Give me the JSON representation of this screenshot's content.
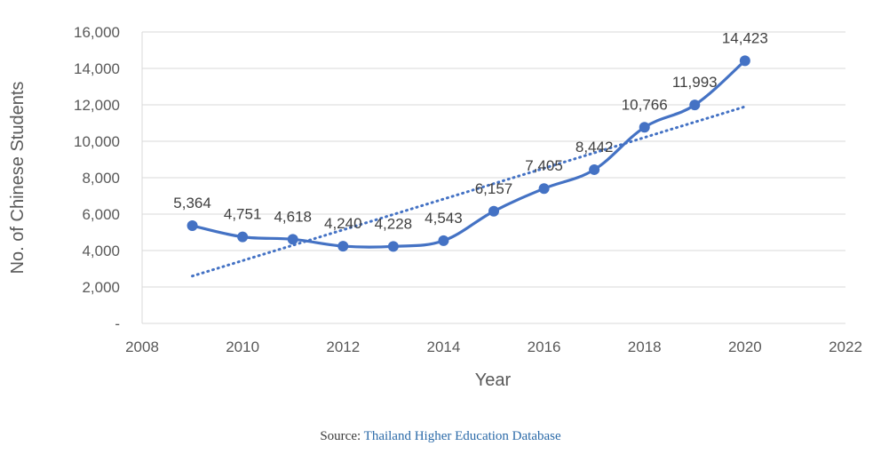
{
  "chart_data": {
    "type": "line",
    "title": "",
    "xlabel": "Year",
    "ylabel": "No. of Chinese Students",
    "xlim": [
      2008,
      2022
    ],
    "ylim": [
      0,
      16000
    ],
    "x_ticks": [
      2008,
      2010,
      2012,
      2014,
      2016,
      2018,
      2020,
      2022
    ],
    "x_tick_labels": [
      "2008",
      "2010",
      "2012",
      "2014",
      "2016",
      "2018",
      "2020",
      "2022"
    ],
    "y_ticks": [
      0,
      2000,
      4000,
      6000,
      8000,
      10000,
      12000,
      14000,
      16000
    ],
    "y_tick_labels": [
      "-",
      "2,000",
      "4,000",
      "6,000",
      "8,000",
      "10,000",
      "12,000",
      "14,000",
      "16,000"
    ],
    "grid": "horizontal",
    "legend": "none",
    "series": [
      {
        "x": [
          2009,
          2010,
          2011,
          2012,
          2013,
          2014,
          2015,
          2016,
          2017,
          2018,
          2019,
          2020
        ],
        "values": [
          5364,
          4751,
          4618,
          4240,
          4228,
          4543,
          6157,
          7405,
          8442,
          10766,
          11993,
          14423
        ],
        "labels": [
          "5,364",
          "4,751",
          "4,618",
          "4,240",
          "4,228",
          "4,543",
          "6,157",
          "7,405",
          "8,442",
          "10,766",
          "11,993",
          "14,423"
        ],
        "color": "#4472C4",
        "style": "smoothed line with markers"
      }
    ],
    "trendline": {
      "type": "linear",
      "style": "dotted",
      "color": "#4472C4",
      "x_range": [
        2009,
        2020
      ],
      "start_value": 2600,
      "end_value": 11900
    }
  },
  "source": {
    "prefix": "Source: ",
    "link_text": "Thailand Higher Education Database",
    "link_color": "#2b6aa8"
  }
}
